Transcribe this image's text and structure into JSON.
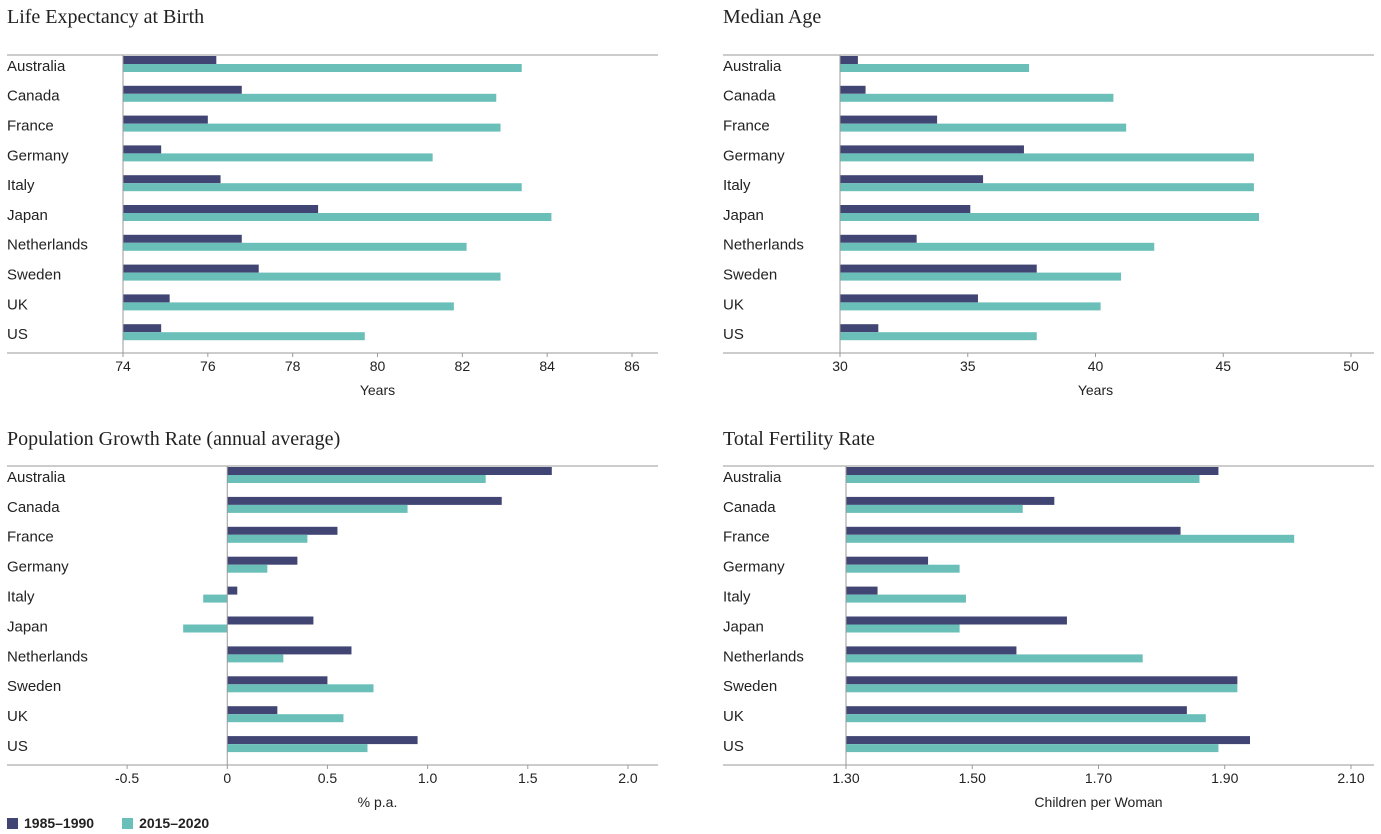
{
  "colors": {
    "series_1": "#414573",
    "series_2": "#6bbfb9",
    "axis": "#9a9a9a"
  },
  "legend": [
    {
      "label": "1985–1990",
      "color": "#414573"
    },
    {
      "label": "2015–2020",
      "color": "#6bbfb9"
    }
  ],
  "chart_data": [
    {
      "type": "bar",
      "orientation": "horizontal",
      "title": "Life Expectancy at Birth",
      "xlabel": "Years",
      "categories": [
        "Australia",
        "Canada",
        "France",
        "Germany",
        "Italy",
        "Japan",
        "Netherlands",
        "Sweden",
        "UK",
        "US"
      ],
      "series": [
        {
          "name": "1985–1990",
          "values": [
            76.2,
            76.8,
            76.0,
            74.9,
            76.3,
            78.6,
            76.8,
            77.2,
            75.1,
            74.9
          ]
        },
        {
          "name": "2015–2020",
          "values": [
            83.4,
            82.8,
            82.9,
            81.3,
            83.4,
            84.1,
            82.1,
            82.9,
            81.8,
            79.7
          ]
        }
      ],
      "xlim": [
        74,
        86
      ],
      "ticks": [
        74,
        76,
        78,
        80,
        82,
        84,
        86
      ],
      "tick_labels": [
        "74",
        "76",
        "78",
        "80",
        "82",
        "84",
        "86"
      ]
    },
    {
      "type": "bar",
      "orientation": "horizontal",
      "title": "Median Age",
      "xlabel": "Years",
      "categories": [
        "Australia",
        "Canada",
        "France",
        "Germany",
        "Italy",
        "Japan",
        "Netherlands",
        "Sweden",
        "UK",
        "US"
      ],
      "series": [
        {
          "name": "1985–1990",
          "values": [
            30.7,
            31.0,
            33.8,
            37.2,
            35.6,
            35.1,
            33.0,
            37.7,
            35.4,
            31.5
          ]
        },
        {
          "name": "2015–2020",
          "values": [
            37.4,
            40.7,
            41.2,
            46.2,
            46.2,
            46.4,
            42.3,
            41.0,
            40.2,
            37.7
          ]
        }
      ],
      "xlim": [
        30,
        50
      ],
      "ticks": [
        30,
        35,
        40,
        45,
        50
      ],
      "tick_labels": [
        "30",
        "35",
        "40",
        "45",
        "50"
      ]
    },
    {
      "type": "bar",
      "orientation": "horizontal",
      "title": "Population Growth Rate (annual average)",
      "xlabel": "% p.a.",
      "categories": [
        "Australia",
        "Canada",
        "France",
        "Germany",
        "Italy",
        "Japan",
        "Netherlands",
        "Sweden",
        "UK",
        "US"
      ],
      "series": [
        {
          "name": "1985–1990",
          "values": [
            1.62,
            1.37,
            0.55,
            0.35,
            0.05,
            0.43,
            0.62,
            0.5,
            0.25,
            0.95
          ]
        },
        {
          "name": "2015–2020",
          "values": [
            1.29,
            0.9,
            0.4,
            0.2,
            -0.12,
            -0.22,
            0.28,
            0.73,
            0.58,
            0.7
          ]
        }
      ],
      "xlim": [
        -0.75,
        2.15
      ],
      "ticks": [
        -0.5,
        0,
        0.5,
        1.0,
        1.5,
        2.0
      ],
      "tick_labels": [
        "-0.5",
        "0",
        "0.5",
        "1.0",
        "1.5",
        "2.0"
      ]
    },
    {
      "type": "bar",
      "orientation": "horizontal",
      "title": "Total Fertility Rate",
      "xlabel": "Children per Woman",
      "categories": [
        "Australia",
        "Canada",
        "France",
        "Germany",
        "Italy",
        "Japan",
        "Netherlands",
        "Sweden",
        "UK",
        "US"
      ],
      "series": [
        {
          "name": "1985–1990",
          "values": [
            1.89,
            1.63,
            1.83,
            1.43,
            1.35,
            1.65,
            1.57,
            1.92,
            1.84,
            1.94
          ]
        },
        {
          "name": "2015–2020",
          "values": [
            1.86,
            1.58,
            2.01,
            1.48,
            1.49,
            1.48,
            1.77,
            1.92,
            1.87,
            1.89
          ]
        }
      ],
      "xlim": [
        1.3,
        2.1
      ],
      "ticks": [
        1.3,
        1.5,
        1.7,
        1.9,
        2.1
      ],
      "tick_labels": [
        "1.30",
        "1.50",
        "1.70",
        "1.90",
        "2.10"
      ]
    }
  ]
}
